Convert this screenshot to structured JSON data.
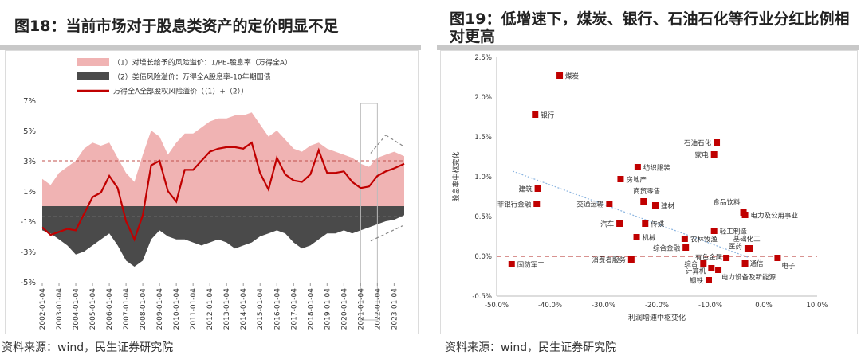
{
  "left": {
    "title": "图18：当前市场对于股息类资产的定价明显不足",
    "source": "资料来源：wind，民生证券研究院",
    "legend": [
      {
        "label": "（1）对增长给予的风险溢价：1/PE-股息率（万得全A）",
        "color": "#f0b3b3",
        "shape": "area"
      },
      {
        "label": "（2）类债风险溢价：万得全A股息率-10年期国债",
        "color": "#4a4a4a",
        "shape": "area"
      },
      {
        "label": "万得全A全部股权风险溢价（（1）+（2））",
        "color": "#c00000",
        "shape": "line"
      }
    ],
    "chart_data": {
      "type": "area",
      "title": "图18：当前市场对于股息类资产的定价明显不足",
      "ylim": [
        -5,
        7
      ],
      "yticks": [
        7,
        5,
        3,
        1,
        -1,
        -3,
        -5
      ],
      "ytick_labels": [
        "7%",
        "5%",
        "3%",
        "1%",
        "-1%",
        "-3%",
        "-5%"
      ],
      "xtick_labels": [
        "2002-01-04",
        "2003-01-04",
        "2004-01-04",
        "2005-01-04",
        "2006-01-04",
        "2007-01-04",
        "2008-01-04",
        "2009-01-04",
        "2010-01-04",
        "2011-01-04",
        "2012-01-04",
        "2013-01-04",
        "2014-01-04",
        "2015-01-04",
        "2016-01-04",
        "2017-01-04",
        "2018-01-04",
        "2019-01-04",
        "2020-01-04",
        "2021-01-04",
        "2022-01-04",
        "2023-01-04"
      ],
      "xlim": [
        2002.0,
        2023.6
      ],
      "reference_lines": [
        3.0,
        -0.7
      ],
      "series": [
        {
          "name": "（1）对增长给予的风险溢价：1/PE-股息率（万得全A）",
          "x": [
            2002.0,
            2002.5,
            2003.0,
            2003.5,
            2004.0,
            2004.5,
            2005.0,
            2005.5,
            2006.0,
            2006.5,
            2007.0,
            2007.5,
            2008.0,
            2008.5,
            2009.0,
            2009.5,
            2010.0,
            2010.5,
            2011.0,
            2011.5,
            2012.0,
            2012.5,
            2013.0,
            2013.5,
            2014.0,
            2014.5,
            2015.0,
            2015.5,
            2016.0,
            2016.5,
            2017.0,
            2017.5,
            2018.0,
            2018.5,
            2019.0,
            2019.5,
            2020.0,
            2020.5,
            2021.0,
            2021.5,
            2022.0,
            2022.5,
            2023.0,
            2023.6
          ],
          "values": [
            1.8,
            1.4,
            2.2,
            2.6,
            3.0,
            3.8,
            4.2,
            4.0,
            4.2,
            3.2,
            2.2,
            1.6,
            3.4,
            5.0,
            4.6,
            3.4,
            4.2,
            4.8,
            4.8,
            5.2,
            5.6,
            5.8,
            5.8,
            6.0,
            6.0,
            6.2,
            5.4,
            4.6,
            5.0,
            4.4,
            3.8,
            3.6,
            4.0,
            4.2,
            3.8,
            3.6,
            3.4,
            3.2,
            2.8,
            2.6,
            3.2,
            3.4,
            3.6,
            3.3
          ]
        },
        {
          "name": "（2）类债风险溢价：万得全A股息率-10年期国债",
          "x": [
            2002.0,
            2002.5,
            2003.0,
            2003.5,
            2004.0,
            2004.5,
            2005.0,
            2005.5,
            2006.0,
            2006.5,
            2007.0,
            2007.5,
            2008.0,
            2008.5,
            2009.0,
            2009.5,
            2010.0,
            2010.5,
            2011.0,
            2011.5,
            2012.0,
            2012.5,
            2013.0,
            2013.5,
            2014.0,
            2014.5,
            2015.0,
            2015.5,
            2016.0,
            2016.5,
            2017.0,
            2017.5,
            2018.0,
            2018.5,
            2019.0,
            2019.5,
            2020.0,
            2020.5,
            2021.0,
            2021.5,
            2022.0,
            2022.5,
            2023.0,
            2023.6
          ],
          "values": [
            -1.6,
            -1.8,
            -2.2,
            -2.6,
            -3.2,
            -3.0,
            -2.6,
            -2.2,
            -1.8,
            -2.6,
            -3.6,
            -4.0,
            -3.6,
            -2.2,
            -1.6,
            -2.0,
            -2.2,
            -2.2,
            -2.4,
            -2.6,
            -2.4,
            -2.2,
            -2.4,
            -2.8,
            -2.6,
            -2.4,
            -2.0,
            -1.8,
            -1.6,
            -1.8,
            -2.4,
            -2.8,
            -2.6,
            -2.2,
            -1.8,
            -1.8,
            -1.6,
            -1.8,
            -1.6,
            -1.4,
            -1.2,
            -1.0,
            -0.9,
            -0.6
          ]
        },
        {
          "name": "万得全A全部股权风险溢价（（1）+（2））",
          "x": [
            2002.0,
            2002.5,
            2003.0,
            2003.5,
            2004.0,
            2004.5,
            2005.0,
            2005.5,
            2006.0,
            2006.5,
            2007.0,
            2007.5,
            2008.0,
            2008.5,
            2009.0,
            2009.5,
            2010.0,
            2010.5,
            2011.0,
            2011.5,
            2012.0,
            2012.5,
            2013.0,
            2013.5,
            2014.0,
            2014.5,
            2015.0,
            2015.5,
            2016.0,
            2016.5,
            2017.0,
            2017.5,
            2018.0,
            2018.5,
            2019.0,
            2019.5,
            2020.0,
            2020.5,
            2021.0,
            2021.5,
            2022.0,
            2022.5,
            2023.0,
            2023.6
          ],
          "values": [
            -1.4,
            -1.9,
            -1.7,
            -1.5,
            -1.6,
            -0.5,
            0.6,
            0.9,
            2.0,
            1.2,
            -1.0,
            -2.2,
            -0.6,
            2.7,
            3.0,
            1.0,
            0.3,
            2.4,
            2.4,
            3.0,
            3.6,
            3.8,
            3.9,
            3.9,
            3.8,
            4.2,
            2.2,
            1.1,
            3.2,
            2.1,
            1.7,
            1.6,
            2.1,
            3.7,
            2.2,
            2.2,
            2.3,
            1.6,
            1.2,
            1.3,
            2.0,
            2.3,
            2.5,
            2.8
          ]
        }
      ]
    }
  },
  "right": {
    "title": "图19：低增速下，煤炭、银行、石油石化等行业分红比例相对更高",
    "source": "资料来源：wind，民生证券研究院",
    "chart_data": {
      "type": "scatter",
      "title": "图19：低增速下，煤炭、银行、石油石化等行业分红比例相对更高",
      "xlabel": "利润增速中枢变化",
      "ylabel": "股息率中枢变化",
      "xlim": [
        -50,
        10
      ],
      "ylim": [
        -0.5,
        2.5
      ],
      "xticks": [
        -50,
        -40,
        -30,
        -20,
        -10,
        0,
        10
      ],
      "xtick_labels": [
        "-50.0%",
        "-40.0%",
        "-30.0%",
        "-20.0%",
        "-10.0%",
        "0.0%",
        "10.0%"
      ],
      "yticks": [
        -0.5,
        0.0,
        0.5,
        1.0,
        1.5,
        2.0,
        2.5
      ],
      "ytick_labels": [
        "-0.5%",
        "0.0%",
        "0.5%",
        "1.0%",
        "1.5%",
        "2.0%",
        "2.5%"
      ],
      "trendline": {
        "x": [
          -47,
          -3
        ],
        "y": [
          1.07,
          -0.01
        ]
      },
      "points": [
        {
          "label": "煤炭",
          "x": -38.2,
          "y": 2.27
        },
        {
          "label": "银行",
          "x": -42.8,
          "y": 1.78
        },
        {
          "label": "石油石化",
          "x": -8.8,
          "y": 1.43
        },
        {
          "label": "家电",
          "x": -9.3,
          "y": 1.28
        },
        {
          "label": "纺织服装",
          "x": -23.6,
          "y": 1.12
        },
        {
          "label": "房地产",
          "x": -26.8,
          "y": 0.97
        },
        {
          "label": "建筑",
          "x": -42.3,
          "y": 0.85
        },
        {
          "label": "商贸零售",
          "x": -22.5,
          "y": 0.69
        },
        {
          "label": "交通运输",
          "x": -28.9,
          "y": 0.66
        },
        {
          "label": "非银行金融",
          "x": -42.5,
          "y": 0.66
        },
        {
          "label": "建材",
          "x": -20.3,
          "y": 0.64
        },
        {
          "label": "食品饮料",
          "x": -3.8,
          "y": 0.55
        },
        {
          "label": "电力及公用事业",
          "x": -3.5,
          "y": 0.52
        },
        {
          "label": "汽车",
          "x": -27.0,
          "y": 0.41
        },
        {
          "label": "传媒",
          "x": -22.2,
          "y": 0.41
        },
        {
          "label": "轻工制造",
          "x": -9.3,
          "y": 0.32
        },
        {
          "label": "机械",
          "x": -23.8,
          "y": 0.24
        },
        {
          "label": "农林牧渔",
          "x": -14.8,
          "y": 0.22
        },
        {
          "label": "基础化工",
          "x": -2.6,
          "y": 0.1
        },
        {
          "label": "综合金融",
          "x": -14.6,
          "y": 0.11
        },
        {
          "label": "医药",
          "x": -3.0,
          "y": 0.1
        },
        {
          "label": "国防军工",
          "x": -47.2,
          "y": -0.1
        },
        {
          "label": "消费者服务",
          "x": -24.8,
          "y": -0.04
        },
        {
          "label": "有色金属",
          "x": -7.0,
          "y": -0.02
        },
        {
          "label": "电子",
          "x": 2.6,
          "y": -0.02
        },
        {
          "label": "综合",
          "x": -11.3,
          "y": -0.09
        },
        {
          "label": "通信",
          "x": -3.5,
          "y": -0.09
        },
        {
          "label": "计算机",
          "x": -9.8,
          "y": -0.15
        },
        {
          "label": "电力设备及新能源",
          "x": -8.5,
          "y": -0.17
        },
        {
          "label": "钢铁",
          "x": -10.3,
          "y": -0.3
        }
      ]
    }
  }
}
